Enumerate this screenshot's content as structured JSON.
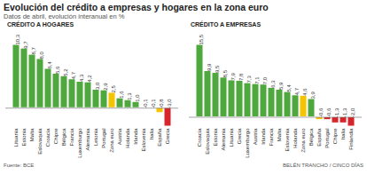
{
  "title": "Evolución del crédito a empresas y hogares en la zona euro",
  "subtitle": "Datos de abril, evolución interanual en %",
  "source": "Fuente: BCE",
  "credit": "BELÉN TRANCHO / CINCO DÍAS",
  "chart_data": [
    {
      "type": "bar",
      "title": "CRÉDITO A HOGARES",
      "categories": [
        "Lituania",
        "Estonia",
        "Malta",
        "Eslovaquia",
        "Croacia",
        "Chipre",
        "Bélgica",
        "Francia",
        "Luxemburgo",
        "Alemania",
        "Letonia",
        "Portugal",
        "Zona euro",
        "Austria",
        "Holanda",
        "Irlanda",
        "Eslovenia",
        "Italia",
        "España",
        "Grecia"
      ],
      "values": [
        10.3,
        9.7,
        8.7,
        8.0,
        6.4,
        5.6,
        5.2,
        4.7,
        4.3,
        4.2,
        3.0,
        2.9,
        2.5,
        1.6,
        1.3,
        1.0,
        -0.1,
        -0.1,
        -0.8,
        -3.0
      ],
      "value_labels": [
        "10,3",
        "9,7",
        "8,7",
        "8,0",
        "6,4",
        "5,6",
        "5,2",
        "4,7",
        "4,3",
        "4,2",
        "3,0",
        "2,9",
        "2,5",
        "1,6",
        "1,3",
        "1,0",
        "-0,1",
        "-0,1",
        "-0,8",
        "-3,0"
      ],
      "colors": [
        "#4fa83d",
        "#4fa83d",
        "#4fa83d",
        "#4fa83d",
        "#4fa83d",
        "#4fa83d",
        "#4fa83d",
        "#4fa83d",
        "#4fa83d",
        "#4fa83d",
        "#4fa83d",
        "#4fa83d",
        "#f5c400",
        "#4fa83d",
        "#4fa83d",
        "#4fa83d",
        "#d7262b",
        "#d7262b",
        "#f5c400",
        "#d7262b"
      ],
      "ylim": [
        -3.0,
        10.3
      ],
      "data_labels": true,
      "tick_labels": "x",
      "grid": false
    },
    {
      "type": "bar",
      "title": "CRÉDITO A EMPRESAS",
      "categories": [
        "Croacia",
        "Eslovaquia",
        "Estonia",
        "Alemania",
        "Lituania",
        "Grecia",
        "Luxemburgo",
        "Austria",
        "Irlanda",
        "Francia",
        "Malta",
        "Eslovenia",
        "Holanda",
        "Zona euro",
        "Bélgica",
        "España",
        "Portugal",
        "Chipre",
        "Italia",
        "Finlandia"
      ],
      "values": [
        15.5,
        9.9,
        9.5,
        8.5,
        7.9,
        7.8,
        7.3,
        7.1,
        7.0,
        6.3,
        5.9,
        5.4,
        4.7,
        4.6,
        3.9,
        -0.6,
        -0.6,
        -1.3,
        -1.3,
        -2.0
      ],
      "value_labels": [
        "15,5",
        "9,9",
        "9,5",
        "8,5",
        "7,9",
        "7,8",
        "7,3",
        "7,1",
        "7,0",
        "6,3",
        "5,9",
        "5,4",
        "4,7",
        "4,6",
        "3,9",
        "-0,6",
        "-0,6",
        "-1,3",
        "-1,3",
        "-2,0"
      ],
      "colors": [
        "#4fa83d",
        "#4fa83d",
        "#4fa83d",
        "#4fa83d",
        "#4fa83d",
        "#4fa83d",
        "#4fa83d",
        "#4fa83d",
        "#4fa83d",
        "#4fa83d",
        "#4fa83d",
        "#4fa83d",
        "#4fa83d",
        "#f5c400",
        "#4fa83d",
        "#f5c400",
        "#d7262b",
        "#d7262b",
        "#d7262b",
        "#d7262b"
      ],
      "ylim": [
        -2.0,
        15.5
      ],
      "data_labels": true,
      "tick_labels": "x",
      "grid": false
    }
  ]
}
